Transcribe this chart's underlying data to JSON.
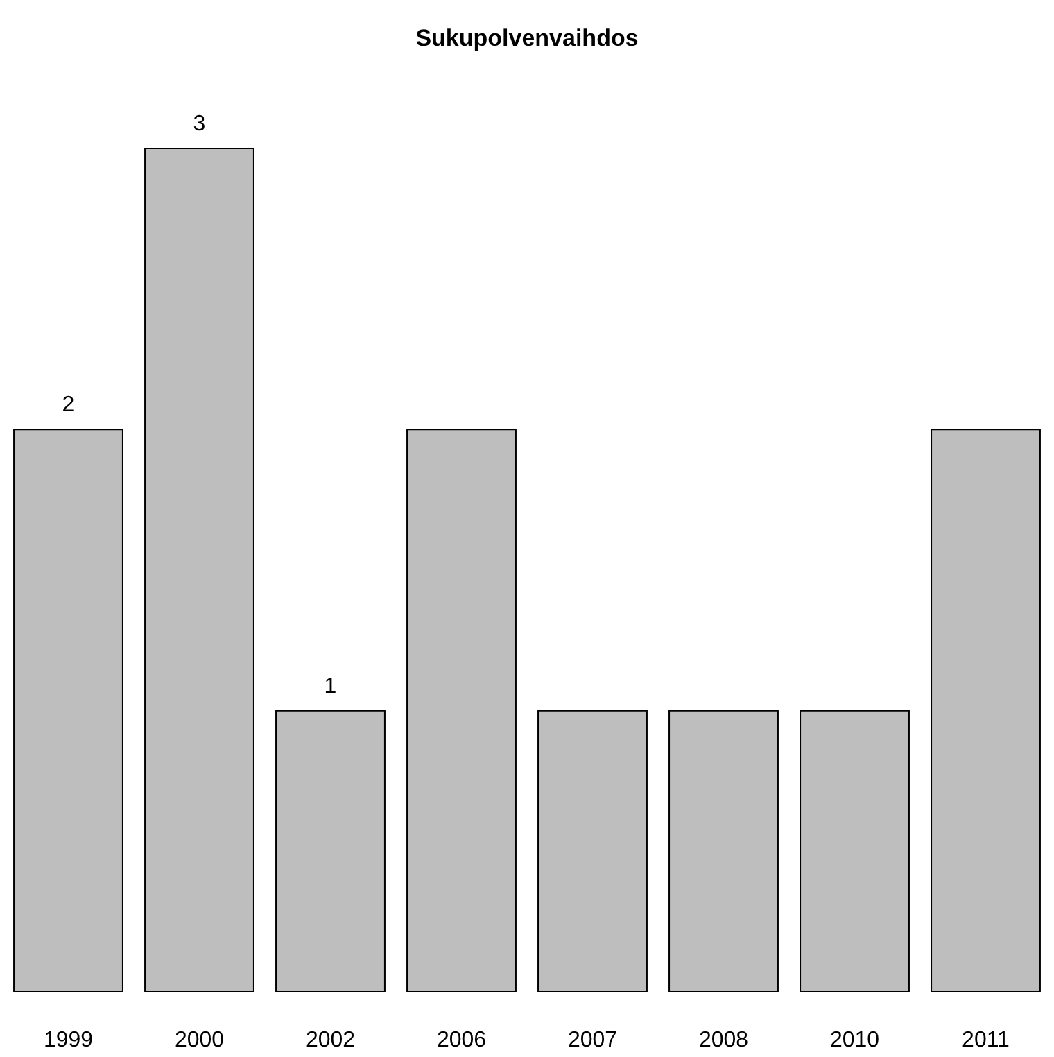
{
  "chart_data": {
    "type": "bar",
    "title": "Sukupolvenvaihdos",
    "categories": [
      "1999",
      "2000",
      "2002",
      "2006",
      "2007",
      "2008",
      "2010",
      "2011"
    ],
    "values": [
      2,
      3,
      1,
      2,
      1,
      1,
      1,
      2
    ],
    "value_labels": [
      "2",
      "3",
      "1",
      null,
      null,
      null,
      null,
      null
    ],
    "color": "#bebebe"
  }
}
